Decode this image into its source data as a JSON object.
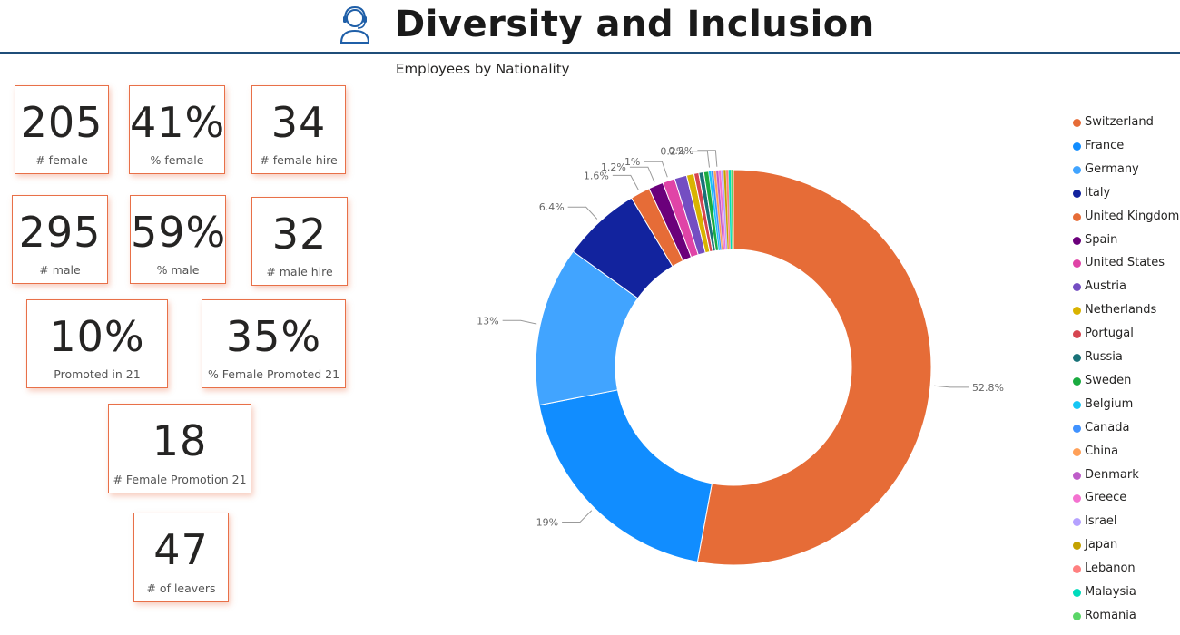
{
  "header": {
    "title": "Diversity and Inclusion",
    "icon": "headset-user-icon"
  },
  "kpis": [
    {
      "value": "205",
      "label": "# female"
    },
    {
      "value": "41%",
      "label": "% female"
    },
    {
      "value": "34",
      "label": "# female hire"
    },
    {
      "value": "295",
      "label": "# male"
    },
    {
      "value": "59%",
      "label": "% male"
    },
    {
      "value": "32",
      "label": "# male hire"
    },
    {
      "value": "10%",
      "label": "Promoted in 21"
    },
    {
      "value": "35%",
      "label": "% Female Promoted 21"
    },
    {
      "value": "18",
      "label": "# Female Promotion 21"
    },
    {
      "value": "47",
      "label": "# of leavers"
    }
  ],
  "chart_data": {
    "type": "pie",
    "title": "Employees by Nationality",
    "donut": true,
    "legend_position": "right",
    "slices": [
      {
        "name": "Switzerland",
        "value": 52.8,
        "color": "#e66c37",
        "label": "52.8%"
      },
      {
        "name": "France",
        "value": 19.0,
        "color": "#118dff",
        "label": "19%"
      },
      {
        "name": "Germany",
        "value": 13.0,
        "color": "#41a4ff",
        "label": "13%"
      },
      {
        "name": "Italy",
        "value": 6.4,
        "color": "#12239e",
        "label": "6.4%"
      },
      {
        "name": "United Kingdom",
        "value": 1.6,
        "color": "#e66c37",
        "label": "1.6%"
      },
      {
        "name": "Spain",
        "value": 1.2,
        "color": "#6b007b",
        "label": "1.2%"
      },
      {
        "name": "United States",
        "value": 1.0,
        "color": "#e044a7",
        "label": "1%"
      },
      {
        "name": "Austria",
        "value": 1.0,
        "color": "#744ec2",
        "label": ""
      },
      {
        "name": "Netherlands",
        "value": 0.6,
        "color": "#d9b300",
        "label": ""
      },
      {
        "name": "Portugal",
        "value": 0.4,
        "color": "#d64550",
        "label": ""
      },
      {
        "name": "Russia",
        "value": 0.4,
        "color": "#197278",
        "label": ""
      },
      {
        "name": "Sweden",
        "value": 0.4,
        "color": "#1aab40",
        "label": ""
      },
      {
        "name": "Belgium",
        "value": 0.2,
        "color": "#15c6f4",
        "label": "0.2%"
      },
      {
        "name": "Canada",
        "value": 0.2,
        "color": "#4092ff",
        "label": ""
      },
      {
        "name": "China",
        "value": 0.2,
        "color": "#ffa058",
        "label": ""
      },
      {
        "name": "Denmark",
        "value": 0.2,
        "color": "#be5dc9",
        "label": "0.2%"
      },
      {
        "name": "Greece",
        "value": 0.2,
        "color": "#f472d0",
        "label": ""
      },
      {
        "name": "Israel",
        "value": 0.2,
        "color": "#b5a1ff",
        "label": ""
      },
      {
        "name": "Japan",
        "value": 0.2,
        "color": "#c4a200",
        "label": ""
      },
      {
        "name": "Lebanon",
        "value": 0.2,
        "color": "#ff8080",
        "label": ""
      },
      {
        "name": "Malaysia",
        "value": 0.2,
        "color": "#00dbbc",
        "label": ""
      },
      {
        "name": "Romania",
        "value": 0.2,
        "color": "#5bd667",
        "label": ""
      }
    ]
  }
}
